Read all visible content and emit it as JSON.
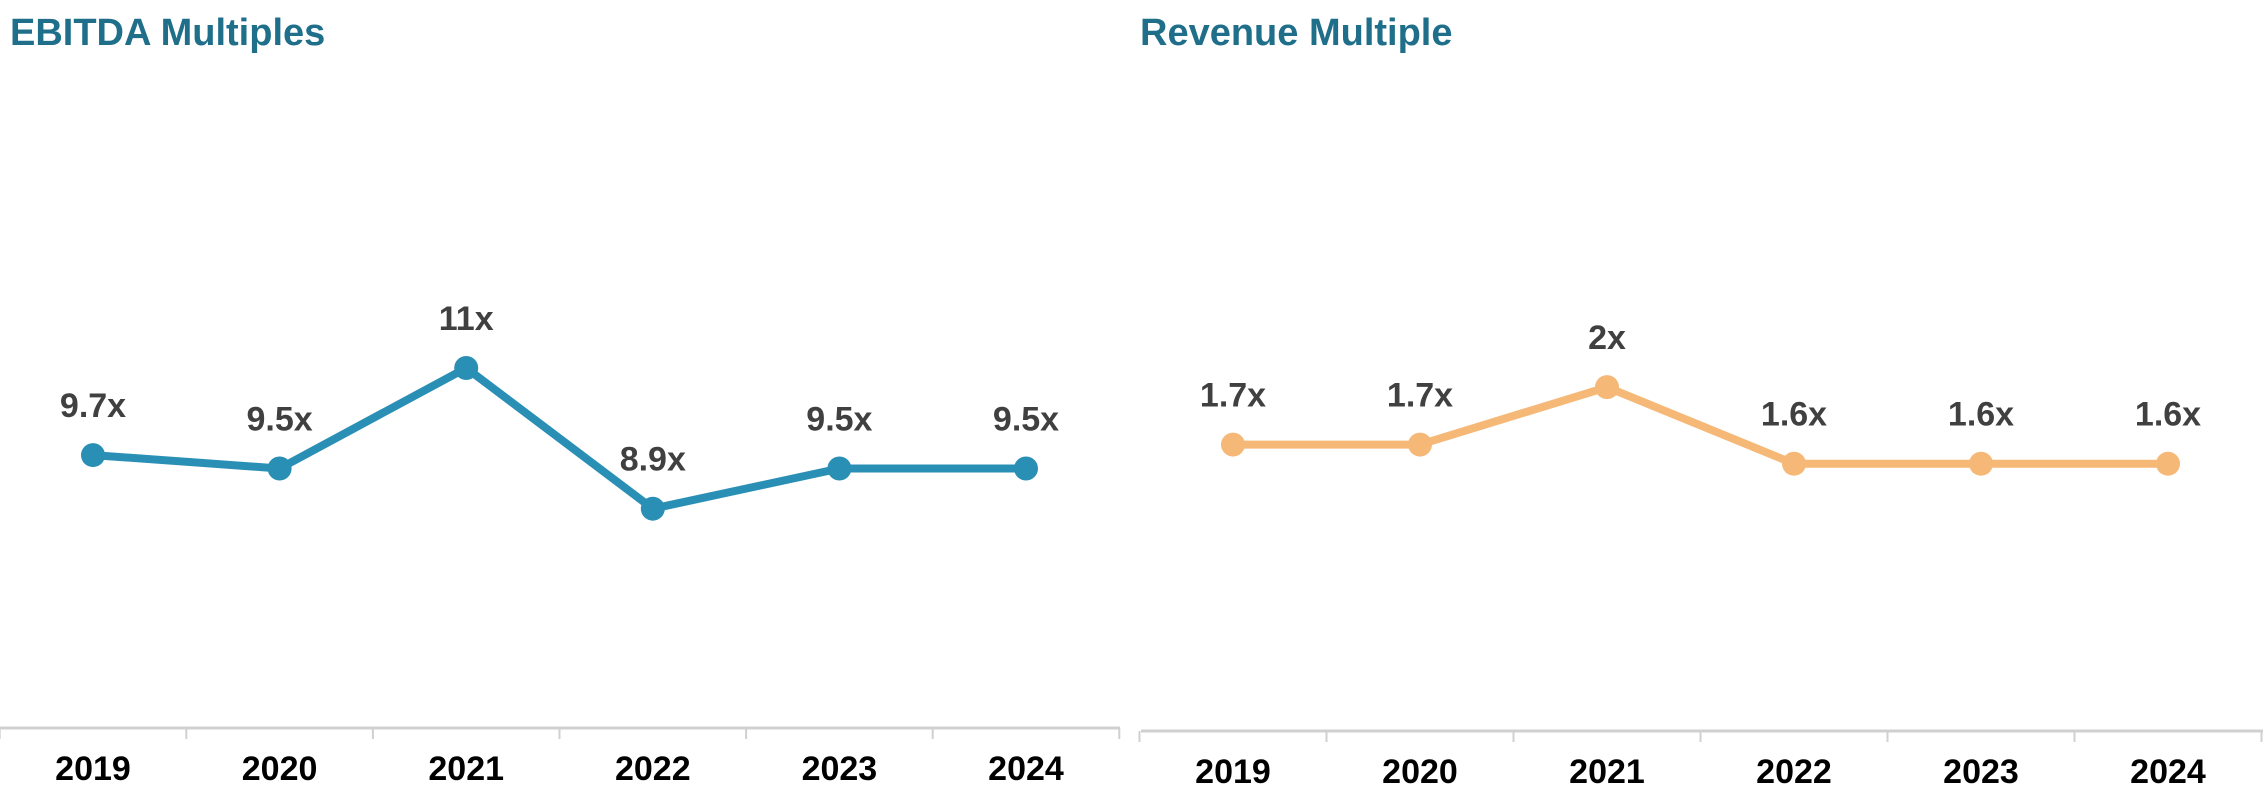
{
  "chart_data": [
    {
      "type": "line",
      "title": "EBITDA Multiples",
      "categories": [
        "2019",
        "2020",
        "2021",
        "2022",
        "2023",
        "2024"
      ],
      "values": [
        9.7,
        9.5,
        11,
        8.9,
        9.5,
        9.5
      ],
      "data_labels": [
        "9.7x",
        "9.5x",
        "11x",
        "8.9x",
        "9.5x",
        "9.5x"
      ],
      "xlabel": "",
      "ylabel": "",
      "ylim": [
        5,
        15
      ],
      "grid": false,
      "legend": "none",
      "color": "#2a8fb5"
    },
    {
      "type": "line",
      "title": "Revenue Multiple",
      "categories": [
        "2019",
        "2020",
        "2021",
        "2022",
        "2023",
        "2024"
      ],
      "values": [
        1.7,
        1.7,
        2,
        1.6,
        1.6,
        1.6
      ],
      "data_labels": [
        "1.7x",
        "1.7x",
        "2x",
        "1.6x",
        "1.6x",
        "1.6x"
      ],
      "xlabel": "",
      "ylabel": "",
      "ylim": [
        0,
        3.5
      ],
      "grid": false,
      "legend": "none",
      "color": "#f5b877"
    }
  ],
  "title_color": "#1f6f8b",
  "axis_color": "#d0d0d0"
}
